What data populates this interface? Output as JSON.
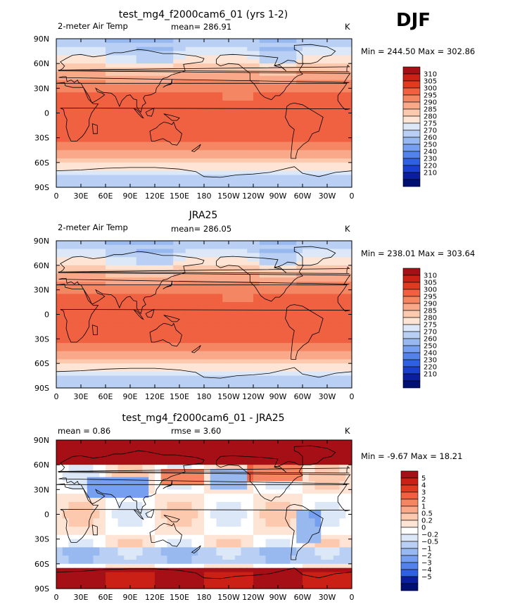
{
  "season": "DJF",
  "panels": [
    {
      "title": "test_mg4_f2000cam6_01 (yrs 1-2)",
      "left_label": "2-meter Air Temp",
      "center_label": "mean= 286.91",
      "units": "K",
      "minmax": "Min = 244.50 Max = 302.86",
      "field": "abs",
      "cb_labels": [
        "310",
        "305",
        "300",
        "295",
        "290",
        "285",
        "280",
        "275",
        "270",
        "260",
        "250",
        "240",
        "230",
        "220",
        "210"
      ],
      "cb_colors": [
        "#a50f15",
        "#cb2015",
        "#e03b20",
        "#ef6141",
        "#f58663",
        "#f9a98a",
        "#fcc9ae",
        "#fde4d4",
        "#dce8f7",
        "#b9d0f4",
        "#98b8f0",
        "#769ff0",
        "#5382ec",
        "#2f60e4",
        "#1a3fcf",
        "#0b1e9c",
        "#000f72"
      ]
    },
    {
      "title": "JRA25",
      "left_label": "2-meter Air Temp",
      "center_label": "mean= 286.05",
      "units": "K",
      "minmax": "Min = 238.01 Max = 303.64",
      "field": "abs",
      "cb_labels": [
        "310",
        "305",
        "300",
        "295",
        "290",
        "285",
        "280",
        "275",
        "270",
        "260",
        "250",
        "240",
        "230",
        "220",
        "210"
      ],
      "cb_colors": [
        "#a50f15",
        "#cb2015",
        "#e03b20",
        "#ef6141",
        "#f58663",
        "#f9a98a",
        "#fcc9ae",
        "#fde4d4",
        "#dce8f7",
        "#b9d0f4",
        "#98b8f0",
        "#769ff0",
        "#5382ec",
        "#2f60e4",
        "#1a3fcf",
        "#0b1e9c",
        "#000f72"
      ]
    },
    {
      "title": "test_mg4_f2000cam6_01 - JRA25",
      "left_label": "mean =    0.86",
      "center_label": "rmse =    3.60",
      "units": "K",
      "minmax": "Min =   -9.67 Max =   18.21",
      "field": "diff",
      "cb_labels": [
        "5",
        "4",
        "3",
        "2",
        "1",
        "0.5",
        "0.2",
        "0",
        "−0.2",
        "−0.5",
        "−1",
        "−2",
        "−3",
        "−4",
        "−5"
      ],
      "cb_colors": [
        "#a50f15",
        "#cb2015",
        "#e03b20",
        "#ef6141",
        "#f58663",
        "#f9a98a",
        "#fcc9ae",
        "#fde4d4",
        "#ffffff",
        "#dce8f7",
        "#b9d0f4",
        "#98b8f0",
        "#769ff0",
        "#5382ec",
        "#2f60e4",
        "#0b1e9c",
        "#000f72"
      ]
    }
  ],
  "axes": {
    "lat_labels": [
      "90N",
      "60N",
      "30N",
      "0",
      "30S",
      "60S",
      "90S"
    ],
    "lon_labels": [
      "0",
      "30E",
      "60E",
      "90E",
      "120E",
      "150E",
      "180",
      "150W",
      "120W",
      "90W",
      "60W",
      "30W",
      "0"
    ]
  },
  "chart_data": [
    {
      "type": "heatmap",
      "title": "test_mg4_f2000cam6_01 (yrs 1-2)",
      "variable": "2-meter Air Temp",
      "season": "DJF",
      "units": "K",
      "mean": 286.91,
      "min": 244.5,
      "max": 302.86,
      "x": "longitude (0 to 360)",
      "y": "latitude (90S to 90N)",
      "contour_levels": [
        210,
        220,
        230,
        240,
        250,
        260,
        270,
        275,
        280,
        285,
        290,
        295,
        300,
        305,
        310
      ]
    },
    {
      "type": "heatmap",
      "title": "JRA25",
      "variable": "2-meter Air Temp",
      "season": "DJF",
      "units": "K",
      "mean": 286.05,
      "min": 238.01,
      "max": 303.64,
      "x": "longitude (0 to 360)",
      "y": "latitude (90S to 90N)",
      "contour_levels": [
        210,
        220,
        230,
        240,
        250,
        260,
        270,
        275,
        280,
        285,
        290,
        295,
        300,
        305,
        310
      ]
    },
    {
      "type": "heatmap",
      "title": "test_mg4_f2000cam6_01 - JRA25",
      "variable": "2-meter Air Temp difference",
      "season": "DJF",
      "units": "K",
      "mean": 0.86,
      "rmse": 3.6,
      "min": -9.67,
      "max": 18.21,
      "x": "longitude (0 to 360)",
      "y": "latitude (90S to 90N)",
      "contour_levels": [
        -5,
        -4,
        -3,
        -2,
        -1,
        -0.5,
        -0.2,
        0,
        0.2,
        0.5,
        1,
        2,
        3,
        4,
        5
      ]
    }
  ]
}
